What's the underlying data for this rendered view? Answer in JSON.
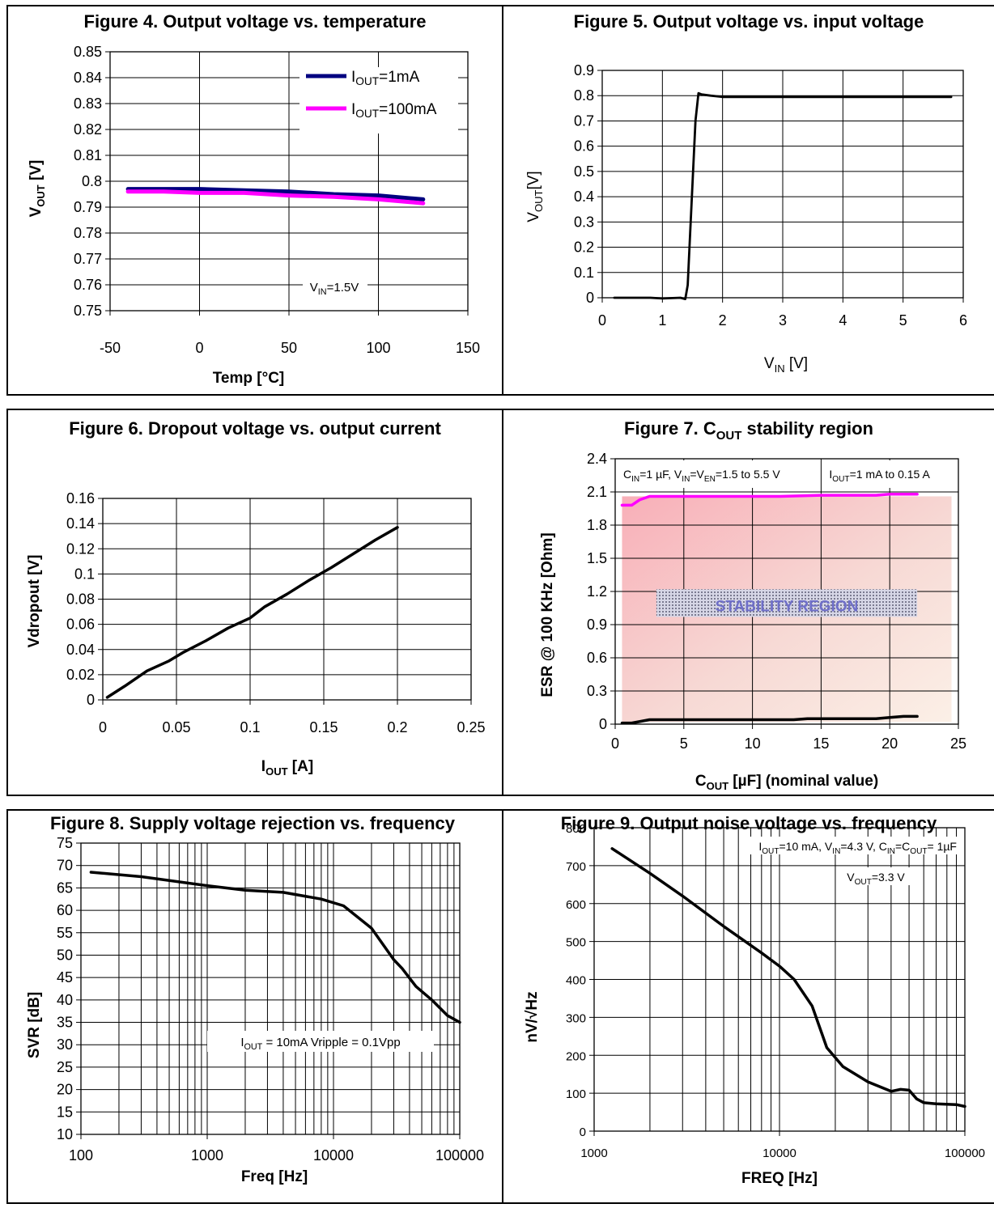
{
  "chart_data": [
    {
      "type": "line",
      "title_prefix": "Figure 4.",
      "title": "Output voltage vs. temperature",
      "xlabel": "Temp [°C]",
      "ylabel_main": "V",
      "ylabel_sub": "OUT",
      "ylabel_tail": " [V]",
      "xlim": [
        -50,
        150
      ],
      "ylim": [
        0.75,
        0.85
      ],
      "xticks": [
        "-50",
        "0",
        "50",
        "100",
        "150"
      ],
      "yticks": [
        "0.75",
        "0.76",
        "0.77",
        "0.78",
        "0.79",
        "0.8",
        "0.81",
        "0.82",
        "0.83",
        "0.84",
        "0.85"
      ],
      "grid": true,
      "legend_position": "top-right",
      "annotation": {
        "main": "V",
        "sub": "IN",
        "tail": "=1.5V"
      },
      "series": [
        {
          "name_main": "I",
          "name_sub": "OUT",
          "name_tail": "=1mA",
          "color": "#000080",
          "x": [
            -40,
            -20,
            0,
            25,
            50,
            75,
            100,
            125
          ],
          "y": [
            0.797,
            0.797,
            0.797,
            0.7965,
            0.796,
            0.795,
            0.7945,
            0.793
          ]
        },
        {
          "name_main": "I",
          "name_sub": "OUT",
          "name_tail": "=100mA",
          "color": "#ff00ff",
          "x": [
            -40,
            -20,
            0,
            25,
            50,
            75,
            100,
            125
          ],
          "y": [
            0.796,
            0.796,
            0.7955,
            0.7955,
            0.7945,
            0.794,
            0.793,
            0.7915
          ]
        }
      ]
    },
    {
      "type": "line",
      "title_prefix": "Figure 5.",
      "title": "Output voltage vs. input voltage",
      "xlabel_main": "V",
      "xlabel_sub": "IN",
      "xlabel_tail": " [V]",
      "ylabel_main": "V",
      "ylabel_sub": "OUT",
      "ylabel_tail": "[V]",
      "xlim": [
        0,
        6
      ],
      "ylim": [
        0,
        0.9
      ],
      "xticks": [
        "0",
        "1",
        "2",
        "3",
        "4",
        "5",
        "6"
      ],
      "yticks": [
        "0",
        "0.1",
        "0.2",
        "0.3",
        "0.4",
        "0.5",
        "0.6",
        "0.7",
        "0.8",
        "0.9"
      ],
      "grid": true,
      "series": [
        {
          "color": "#000000",
          "x": [
            0.2,
            0.8,
            1.0,
            1.3,
            1.38,
            1.42,
            1.45,
            1.5,
            1.55,
            1.6,
            1.65,
            1.8,
            2.0,
            3.0,
            4.0,
            5.0,
            5.8
          ],
          "y": [
            0.0,
            0.0,
            -0.003,
            0.0,
            -0.005,
            0.05,
            0.2,
            0.45,
            0.7,
            0.81,
            0.805,
            0.8,
            0.795,
            0.795,
            0.795,
            0.795,
            0.795
          ]
        }
      ]
    },
    {
      "type": "line",
      "title_prefix": "Figure 6.",
      "title": "Dropout voltage vs. output current",
      "xlabel_main": "I",
      "xlabel_sub": "OUT",
      "xlabel_tail": " [A]",
      "ylabel": "Vdropout [V]",
      "xlim": [
        0,
        0.25
      ],
      "ylim": [
        0,
        0.16
      ],
      "xticks": [
        "0",
        "0.05",
        "0.1",
        "0.15",
        "0.2",
        "0.25"
      ],
      "yticks": [
        "0",
        "0.02",
        "0.04",
        "0.06",
        "0.08",
        "0.1",
        "0.12",
        "0.14",
        "0.16"
      ],
      "grid": true,
      "series": [
        {
          "color": "#000000",
          "x": [
            0.003,
            0.015,
            0.03,
            0.045,
            0.055,
            0.07,
            0.085,
            0.1,
            0.11,
            0.125,
            0.14,
            0.155,
            0.17,
            0.185,
            0.2
          ],
          "y": [
            0.002,
            0.011,
            0.023,
            0.031,
            0.038,
            0.047,
            0.057,
            0.065,
            0.074,
            0.084,
            0.095,
            0.105,
            0.116,
            0.127,
            0.137
          ]
        }
      ]
    },
    {
      "type": "line",
      "title_prefix": "Figure 7.",
      "title_main": "C",
      "title_sub": "OUT",
      "title_tail": " stability region",
      "xlabel_main": "C",
      "xlabel_sub": "OUT",
      "xlabel_tail": " [µF] (nominal value)",
      "ylabel": "ESR @ 100 KHz [Ohm]",
      "xlim": [
        0,
        25
      ],
      "ylim": [
        0,
        2.4
      ],
      "xticks": [
        "0",
        "5",
        "10",
        "15",
        "20",
        "25"
      ],
      "yticks": [
        "0",
        "0.3",
        "0.6",
        "0.9",
        "1.2",
        "1.5",
        "1.8",
        "2.1",
        "2.4"
      ],
      "grid": true,
      "region_label": "STABILITY REGION",
      "note_left": {
        "p1": "C",
        "s1": "IN",
        "p2": "=1 µF, V",
        "s2": "IN",
        "p3": "=V",
        "s3": "EN",
        "p4": "=1.5 to 5.5 V"
      },
      "note_right": {
        "p1": "I",
        "s1": "OUT",
        "p2": "=1 mA to 0.15 A"
      },
      "series": [
        {
          "color": "#ff00ff",
          "x": [
            0.5,
            1.2,
            1.8,
            2.5,
            5,
            10,
            12,
            15,
            18,
            19,
            20,
            21,
            22
          ],
          "y": [
            1.98,
            1.98,
            2.03,
            2.06,
            2.06,
            2.06,
            2.06,
            2.07,
            2.07,
            2.07,
            2.08,
            2.08,
            2.08
          ]
        },
        {
          "color": "#000000",
          "x": [
            0.5,
            1.2,
            2.5,
            5,
            10,
            13,
            14,
            18,
            19,
            20,
            21,
            22
          ],
          "y": [
            0.01,
            0.01,
            0.04,
            0.04,
            0.04,
            0.04,
            0.05,
            0.05,
            0.05,
            0.06,
            0.07,
            0.07
          ]
        }
      ]
    },
    {
      "type": "line",
      "title_prefix": "Figure 8.",
      "title": "Supply voltage rejection vs. frequency",
      "xlabel": "Freq [Hz]",
      "ylabel": "SVR [dB]",
      "xscale": "log",
      "xlim": [
        100,
        100000
      ],
      "ylim": [
        10,
        75
      ],
      "xticks": [
        "100",
        "1000",
        "10000",
        "100000"
      ],
      "yticks": [
        "10",
        "15",
        "20",
        "25",
        "30",
        "35",
        "40",
        "45",
        "50",
        "55",
        "60",
        "65",
        "70",
        "75"
      ],
      "grid": true,
      "annotation": {
        "main": "I",
        "sub": "OUT",
        "tail": " = 10mA Vripple = 0.1Vpp"
      },
      "series": [
        {
          "color": "#000000",
          "x": [
            120,
            300,
            1000,
            2000,
            4000,
            8000,
            12000,
            20000,
            30000,
            35000,
            45000,
            60000,
            80000,
            100000
          ],
          "y": [
            68.5,
            67.5,
            65.5,
            64.5,
            64,
            62.5,
            61,
            56,
            49,
            47,
            43,
            40,
            36.5,
            35
          ]
        }
      ]
    },
    {
      "type": "line",
      "title_prefix": "Figure 9.",
      "title": "Output noise voltage vs. frequency",
      "xlabel": "FREQ [Hz]",
      "ylabel": "nV/√Hz",
      "xscale": "log",
      "xlim": [
        1000,
        100000
      ],
      "ylim": [
        0,
        800
      ],
      "xticks": [
        "1000",
        "10000",
        "100000"
      ],
      "yticks": [
        "0",
        "100",
        "200",
        "300",
        "400",
        "500",
        "600",
        "700",
        "800"
      ],
      "grid": true,
      "note_left": {
        "p1": "I",
        "s1": "OUT",
        "p2": "=10 mA, V",
        "s2": "IN",
        "p3": "=4.3 V, C",
        "s3": "IN",
        "p4": "=C",
        "s4": "OUT",
        "p5": "= 1µF"
      },
      "note_second": {
        "p1": "V",
        "s1": "OUT",
        "p2": "=3.3 V"
      },
      "series": [
        {
          "color": "#000000",
          "x": [
            1250,
            2000,
            3000,
            5000,
            8000,
            10000,
            12000,
            15000,
            18000,
            22000,
            30000,
            40000,
            45000,
            50000,
            55000,
            60000,
            70000,
            90000,
            100000
          ],
          "y": [
            745,
            680,
            620,
            540,
            470,
            435,
            400,
            330,
            220,
            170,
            130,
            105,
            110,
            108,
            85,
            75,
            72,
            70,
            65
          ]
        }
      ]
    }
  ]
}
